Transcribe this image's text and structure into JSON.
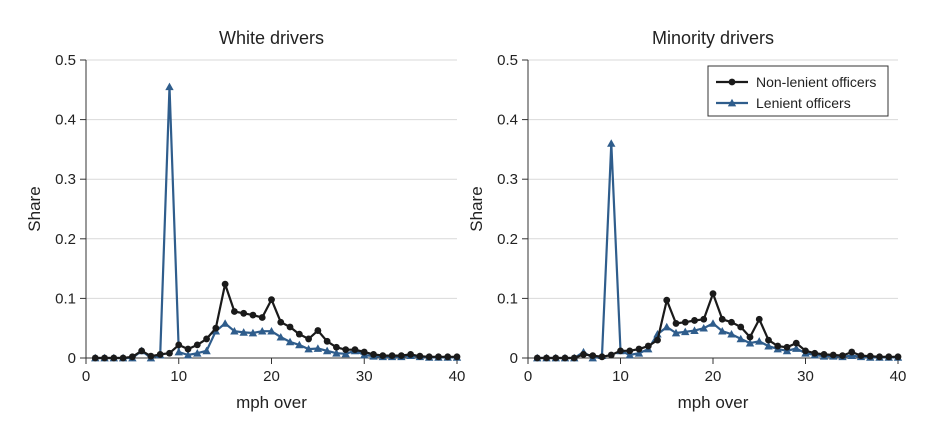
{
  "figure": {
    "colors": {
      "non_lenient": "#1a1a1a",
      "lenient": "#2f5d8c",
      "grid": "#d9d9d9",
      "axis": "#333333"
    }
  },
  "chart_data": [
    {
      "type": "line",
      "title": "White drivers",
      "xlabel": "mph over",
      "ylabel": "Share",
      "xlim": [
        0,
        40
      ],
      "ylim": [
        0,
        0.5
      ],
      "xticks": [
        "0",
        "10",
        "20",
        "30",
        "40"
      ],
      "yticks": [
        "0",
        "0.1",
        "0.2",
        "0.3",
        "0.4",
        "0.5"
      ],
      "grid": "horizontal",
      "legend": null,
      "x": [
        1,
        2,
        3,
        4,
        5,
        6,
        7,
        8,
        9,
        10,
        11,
        12,
        13,
        14,
        15,
        16,
        17,
        18,
        19,
        20,
        21,
        22,
        23,
        24,
        25,
        26,
        27,
        28,
        29,
        30,
        31,
        32,
        33,
        34,
        35,
        36,
        37,
        38,
        39,
        40
      ],
      "series": [
        {
          "name": "Non-lenient officers",
          "marker": "circle",
          "values": [
            0,
            0,
            0,
            0,
            0.002,
            0.012,
            0.003,
            0.006,
            0.008,
            0.022,
            0.015,
            0.022,
            0.032,
            0.05,
            0.124,
            0.078,
            0.075,
            0.072,
            0.068,
            0.098,
            0.06,
            0.052,
            0.04,
            0.032,
            0.046,
            0.028,
            0.018,
            0.014,
            0.014,
            0.01,
            0.006,
            0.004,
            0.004,
            0.004,
            0.006,
            0.003,
            0.002,
            0.002,
            0.002,
            0.002
          ]
        },
        {
          "name": "Lenient officers",
          "marker": "triangle",
          "values": [
            0,
            0,
            0,
            0,
            0,
            0.012,
            0,
            0.005,
            0.455,
            0.01,
            0.005,
            0.008,
            0.012,
            0.045,
            0.058,
            0.045,
            0.043,
            0.042,
            0.045,
            0.045,
            0.035,
            0.027,
            0.022,
            0.015,
            0.016,
            0.012,
            0.008,
            0.007,
            0.012,
            0.005,
            0.003,
            0.002,
            0.002,
            0.002,
            0.004,
            0.002,
            0.001,
            0.001,
            0.001,
            0.001
          ]
        }
      ]
    },
    {
      "type": "line",
      "title": "Minority drivers",
      "xlabel": "mph over",
      "ylabel": "Share",
      "xlim": [
        0,
        40
      ],
      "ylim": [
        0,
        0.5
      ],
      "xticks": [
        "0",
        "10",
        "20",
        "30",
        "40"
      ],
      "yticks": [
        "0",
        "0.1",
        "0.2",
        "0.3",
        "0.4",
        "0.5"
      ],
      "grid": "horizontal",
      "legend": "top-right",
      "x": [
        1,
        2,
        3,
        4,
        5,
        6,
        7,
        8,
        9,
        10,
        11,
        12,
        13,
        14,
        15,
        16,
        17,
        18,
        19,
        20,
        21,
        22,
        23,
        24,
        25,
        26,
        27,
        28,
        29,
        30,
        31,
        32,
        33,
        34,
        35,
        36,
        37,
        38,
        39,
        40
      ],
      "series": [
        {
          "name": "Non-lenient officers",
          "marker": "circle",
          "values": [
            0,
            0,
            0,
            0,
            0,
            0.006,
            0.004,
            0.002,
            0.005,
            0.012,
            0.012,
            0.015,
            0.02,
            0.03,
            0.097,
            0.058,
            0.06,
            0.063,
            0.065,
            0.108,
            0.065,
            0.06,
            0.052,
            0.035,
            0.065,
            0.03,
            0.02,
            0.018,
            0.025,
            0.012,
            0.008,
            0.006,
            0.005,
            0.004,
            0.01,
            0.004,
            0.003,
            0.002,
            0.002,
            0.002
          ]
        },
        {
          "name": "Lenient officers",
          "marker": "triangle",
          "values": [
            0,
            0,
            0,
            0,
            0,
            0.01,
            0,
            0.004,
            0.36,
            0.012,
            0.005,
            0.008,
            0.015,
            0.04,
            0.052,
            0.042,
            0.044,
            0.046,
            0.05,
            0.058,
            0.045,
            0.04,
            0.032,
            0.025,
            0.028,
            0.02,
            0.015,
            0.012,
            0.016,
            0.008,
            0.005,
            0.003,
            0.003,
            0.002,
            0.004,
            0.002,
            0.001,
            0.001,
            0.001,
            0.001
          ]
        }
      ]
    }
  ]
}
